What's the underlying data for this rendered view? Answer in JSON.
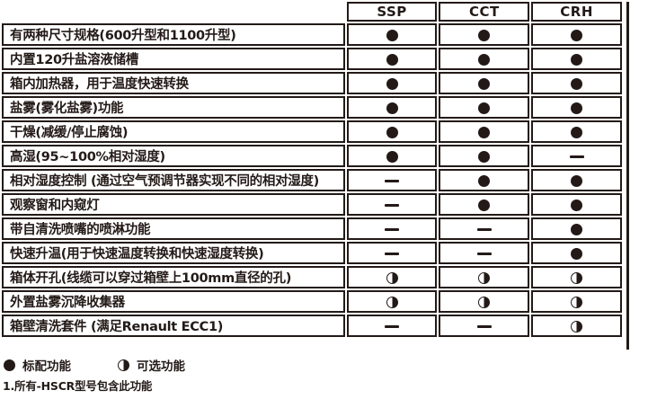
{
  "table": {
    "columns": [
      "SSP",
      "CCT",
      "CRH"
    ],
    "rows": [
      {
        "label": "有两种尺寸规格(600升型和1100升型)",
        "values": [
          "full",
          "full",
          "full"
        ]
      },
      {
        "label": "内置120升盐溶液储槽",
        "values": [
          "full",
          "full",
          "full"
        ]
      },
      {
        "label": "箱内加热器，用于温度快速转换",
        "values": [
          "full",
          "full",
          "full"
        ]
      },
      {
        "label": "盐雾(雾化盐雾)功能",
        "values": [
          "full",
          "full",
          "full"
        ]
      },
      {
        "label": "干燥(减缓/停止腐蚀)",
        "values": [
          "full",
          "full",
          "full"
        ]
      },
      {
        "label": "高湿(95~100%相对湿度)",
        "values": [
          "full",
          "full",
          "dash"
        ]
      },
      {
        "label": "相对湿度控制 (通过空气预调节器实现不同的相对湿度)",
        "values": [
          "dash",
          "full",
          "full"
        ]
      },
      {
        "label": "观察窗和内窥灯",
        "values": [
          "dash",
          "full",
          "full"
        ]
      },
      {
        "label": "带自清洗喷嘴的喷淋功能",
        "values": [
          "dash",
          "dash",
          "full"
        ]
      },
      {
        "label": "快速升温(用于快速温度转换和快速湿度转换)",
        "values": [
          "dash",
          "dash",
          "full"
        ]
      },
      {
        "label": "箱体开孔(线缆可以穿过箱壁上100mm直径的孔)",
        "values": [
          "half",
          "half",
          "half"
        ]
      },
      {
        "label": "外置盐雾沉降收集器",
        "values": [
          "half",
          "half",
          "half"
        ]
      },
      {
        "label": "箱壁清洗套件 (满足Renault ECC1)",
        "values": [
          "dash",
          "dash",
          "half"
        ]
      }
    ]
  },
  "symbols": {
    "full": "standard-feature-icon",
    "half": "optional-feature-icon",
    "dash": "dash-icon"
  },
  "legend": {
    "standard_label": "标配功能",
    "optional_label": "可选功能"
  },
  "footnote": "1.所有-HSCR型号包含此功能",
  "colors": {
    "ink": "#231a17",
    "background": "#ffffff"
  }
}
